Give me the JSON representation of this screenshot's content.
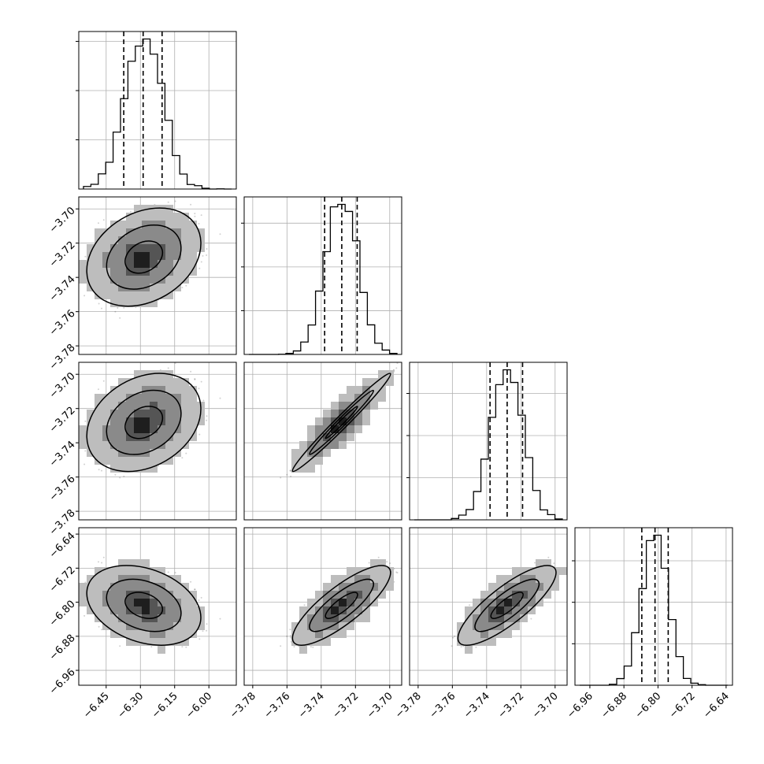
{
  "figure": {
    "kind": "corner plot",
    "background": "#ffffff",
    "accent": "#000000"
  },
  "chart_data": {
    "type": "corner",
    "params": 4,
    "axis_labels": [
      "",
      "",
      "",
      ""
    ],
    "ranges": [
      [
        -6.57,
        -5.88
      ],
      [
        -3.785,
        -3.693
      ],
      [
        -3.785,
        -3.693
      ],
      [
        -6.995,
        -6.625
      ]
    ],
    "ticks": [
      [
        -6.45,
        -6.3,
        -6.15,
        -6.0
      ],
      [
        -3.78,
        -3.76,
        -3.74,
        -3.72,
        -3.7
      ],
      [
        -3.78,
        -3.76,
        -3.74,
        -3.72,
        -3.7
      ],
      [
        -6.96,
        -6.88,
        -6.8,
        -6.72,
        -6.64
      ]
    ],
    "tick_labels": [
      [
        "−6.45",
        "−6.30",
        "−6.15",
        "−6.00"
      ],
      [
        "−3.78",
        "−3.76",
        "−3.74",
        "−3.72",
        "−3.70"
      ],
      [
        "−3.78",
        "−3.76",
        "−3.74",
        "−3.72",
        "−3.70"
      ],
      [
        "−6.96",
        "−6.88",
        "−6.80",
        "−6.72",
        "−6.64"
      ]
    ],
    "quantiles": [
      [
        -6.373,
        -6.288,
        -6.205
      ],
      [
        -3.738,
        -3.728,
        -3.719
      ],
      [
        -3.738,
        -3.728,
        -3.719
      ],
      [
        -6.838,
        -6.807,
        -6.776
      ]
    ],
    "distributions": [
      {
        "mean": -6.285,
        "sd": 0.083
      },
      {
        "mean": -3.728,
        "sd": 0.0095
      },
      {
        "mean": -3.728,
        "sd": 0.0095
      },
      {
        "mean": -6.807,
        "sd": 0.031
      }
    ],
    "correlations": [
      [
        1.0,
        0.28,
        0.28,
        -0.3
      ],
      [
        0.28,
        1.0,
        0.985,
        0.82
      ],
      [
        0.28,
        0.985,
        1.0,
        0.82
      ],
      [
        -0.3,
        0.82,
        0.82,
        1.0
      ]
    ],
    "n_samples": 5000,
    "hist_bins": 20,
    "contour_levels": [
      0.39,
      0.86,
      0.99
    ],
    "grid": true,
    "legend": "none"
  }
}
